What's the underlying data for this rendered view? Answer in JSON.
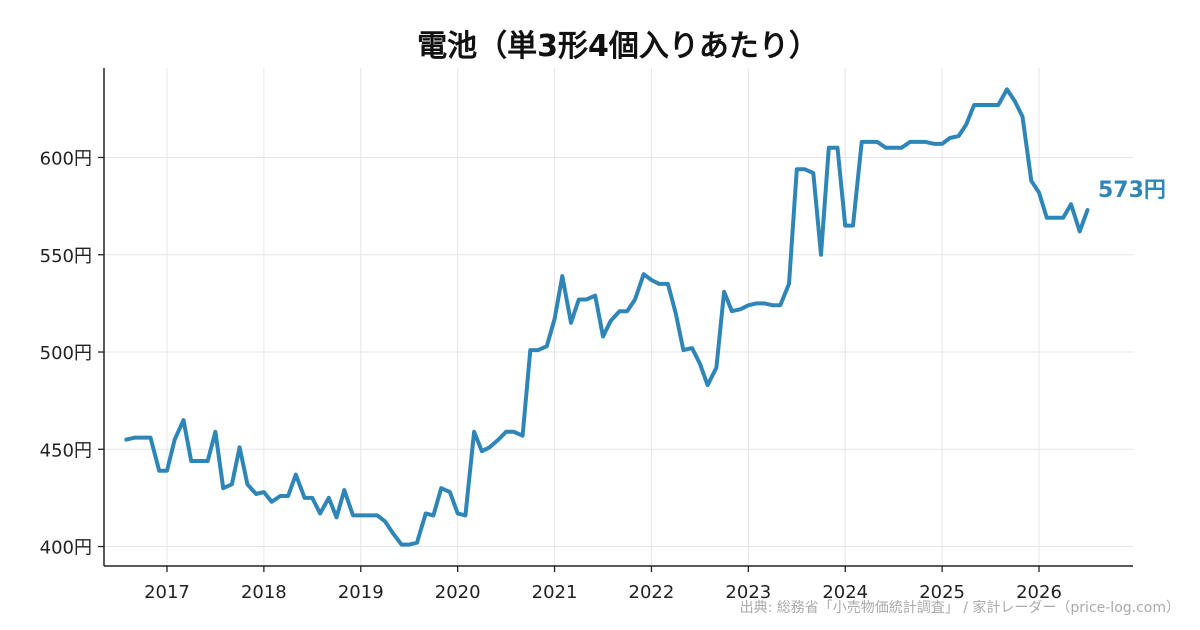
{
  "chart_data": {
    "type": "line",
    "title": "電池（単3形4個入りあたり）",
    "xlabel": "",
    "ylabel": "",
    "y_unit": "円",
    "xlim": [
      2016.35,
      2026.97
    ],
    "ylim": [
      390,
      646
    ],
    "x_ticks": [
      2017,
      2018,
      2019,
      2020,
      2021,
      2022,
      2023,
      2024,
      2025,
      2026
    ],
    "x_tick_labels": [
      "2017",
      "2018",
      "2019",
      "2020",
      "2021",
      "2022",
      "2023",
      "2024",
      "2025",
      "2026"
    ],
    "y_ticks": [
      400,
      450,
      500,
      550,
      600
    ],
    "y_tick_labels": [
      "400円",
      "450円",
      "500円",
      "550円",
      "600円"
    ],
    "grid": true,
    "line_color": "#2e86b8",
    "end_label": "573円",
    "series": [
      {
        "x": [
          2016.58,
          2016.67,
          2016.75,
          2016.83,
          2016.92,
          2017.0,
          2017.08,
          2017.17,
          2017.25,
          2017.33,
          2017.42,
          2017.5,
          2017.58,
          2017.67,
          2017.75,
          2017.83,
          2017.92,
          2018.0,
          2018.08,
          2018.17,
          2018.25,
          2018.33,
          2018.42,
          2018.5,
          2018.58,
          2018.67,
          2018.75,
          2018.83,
          2018.92,
          2019.0,
          2019.08,
          2019.17,
          2019.25,
          2019.33,
          2019.42,
          2019.5,
          2019.58,
          2019.67,
          2019.75,
          2019.83,
          2019.92,
          2020.0,
          2020.08,
          2020.17,
          2020.25,
          2020.33,
          2020.42,
          2020.5,
          2020.58,
          2020.67,
          2020.75,
          2020.83,
          2020.92,
          2021.0,
          2021.08,
          2021.17,
          2021.25,
          2021.33,
          2021.42,
          2021.5,
          2021.58,
          2021.67,
          2021.75,
          2021.83,
          2021.92,
          2022.0,
          2022.08,
          2022.17,
          2022.25,
          2022.33,
          2022.42,
          2022.5,
          2022.58,
          2022.67,
          2022.75,
          2022.83,
          2022.92,
          2023.0,
          2023.08,
          2023.17,
          2023.25,
          2023.33,
          2023.42,
          2023.5,
          2023.58,
          2023.67,
          2023.75,
          2023.83,
          2023.92,
          2024.0,
          2024.08,
          2024.17,
          2024.25,
          2024.33,
          2024.42,
          2024.5,
          2024.58,
          2024.67,
          2024.75,
          2024.83,
          2024.92,
          2025.0,
          2025.08,
          2025.17,
          2025.25,
          2025.33,
          2025.42,
          2025.5,
          2025.58,
          2025.67,
          2025.75,
          2025.83,
          2025.92,
          2026.0,
          2026.08,
          2026.17,
          2026.25,
          2026.33,
          2026.42,
          2026.5
        ],
        "y": [
          455,
          456,
          456,
          456,
          439,
          439,
          455,
          465,
          444,
          444,
          444,
          459,
          430,
          432,
          451,
          432,
          427,
          428,
          423,
          426,
          426,
          437,
          425,
          425,
          417,
          425,
          415,
          429,
          416,
          416,
          416,
          416,
          413,
          407,
          401,
          401,
          402,
          417,
          416,
          430,
          428,
          417,
          416,
          459,
          449,
          451,
          455,
          459,
          459,
          457,
          501,
          501,
          503,
          517,
          539,
          515,
          527,
          527,
          529,
          508,
          516,
          521,
          521,
          527,
          540,
          537,
          535,
          535,
          520,
          501,
          502,
          494,
          483,
          492,
          531,
          521,
          522,
          524,
          525,
          525,
          524,
          524,
          535,
          594,
          594,
          592,
          550,
          605,
          605,
          565,
          565,
          608,
          608,
          608,
          605,
          605,
          605,
          608,
          608,
          608,
          607,
          607,
          610,
          611,
          617,
          627,
          627,
          627,
          627,
          635,
          629,
          621,
          588,
          582,
          569,
          569,
          569,
          576,
          562,
          573
        ]
      }
    ]
  },
  "source_text": "出典: 総務省「小売物価統計調査」 / 家計レーダー（price-log.com）"
}
